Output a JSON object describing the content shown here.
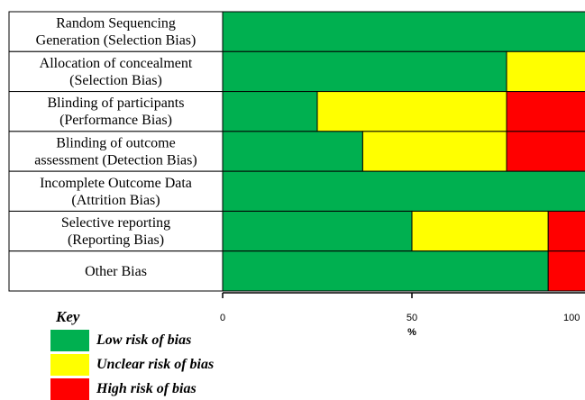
{
  "chart_data": {
    "type": "bar",
    "orientation": "horizontal",
    "stacked": true,
    "categories": [
      [
        "Random Sequencing",
        "Generation (Selection Bias)"
      ],
      [
        "Allocation of concealment",
        "(Selection Bias)"
      ],
      [
        "Blinding of participants",
        "(Performance Bias)"
      ],
      [
        "Blinding of outcome",
        "assessment (Detection Bias)"
      ],
      [
        "Incomplete Outcome Data",
        "(Attrition Bias)"
      ],
      [
        "Selective reporting",
        "(Reporting Bias)"
      ],
      [
        "Other Bias"
      ]
    ],
    "series": [
      {
        "name": "Low risk of bias",
        "color": "#00b050",
        "values": [
          100,
          75,
          25,
          37,
          100,
          50,
          86
        ]
      },
      {
        "name": "Unclear risk of bias",
        "color": "#ffff00",
        "values": [
          0,
          25,
          50,
          38,
          0,
          36,
          0
        ]
      },
      {
        "name": "High risk of bias",
        "color": "#ff0000",
        "values": [
          0,
          0,
          25,
          25,
          0,
          14,
          14
        ]
      }
    ],
    "xticks": [
      "0",
      "50",
      "100"
    ],
    "xlabel": "%",
    "xlim": [
      0,
      100
    ],
    "grid": false
  },
  "key": {
    "title": "Key",
    "items": [
      {
        "label": "Low risk of bias",
        "color": "#00b050"
      },
      {
        "label": "Unclear risk of bias",
        "color": "#ffff00"
      },
      {
        "label": "High risk of bias",
        "color": "#ff0000"
      }
    ]
  }
}
